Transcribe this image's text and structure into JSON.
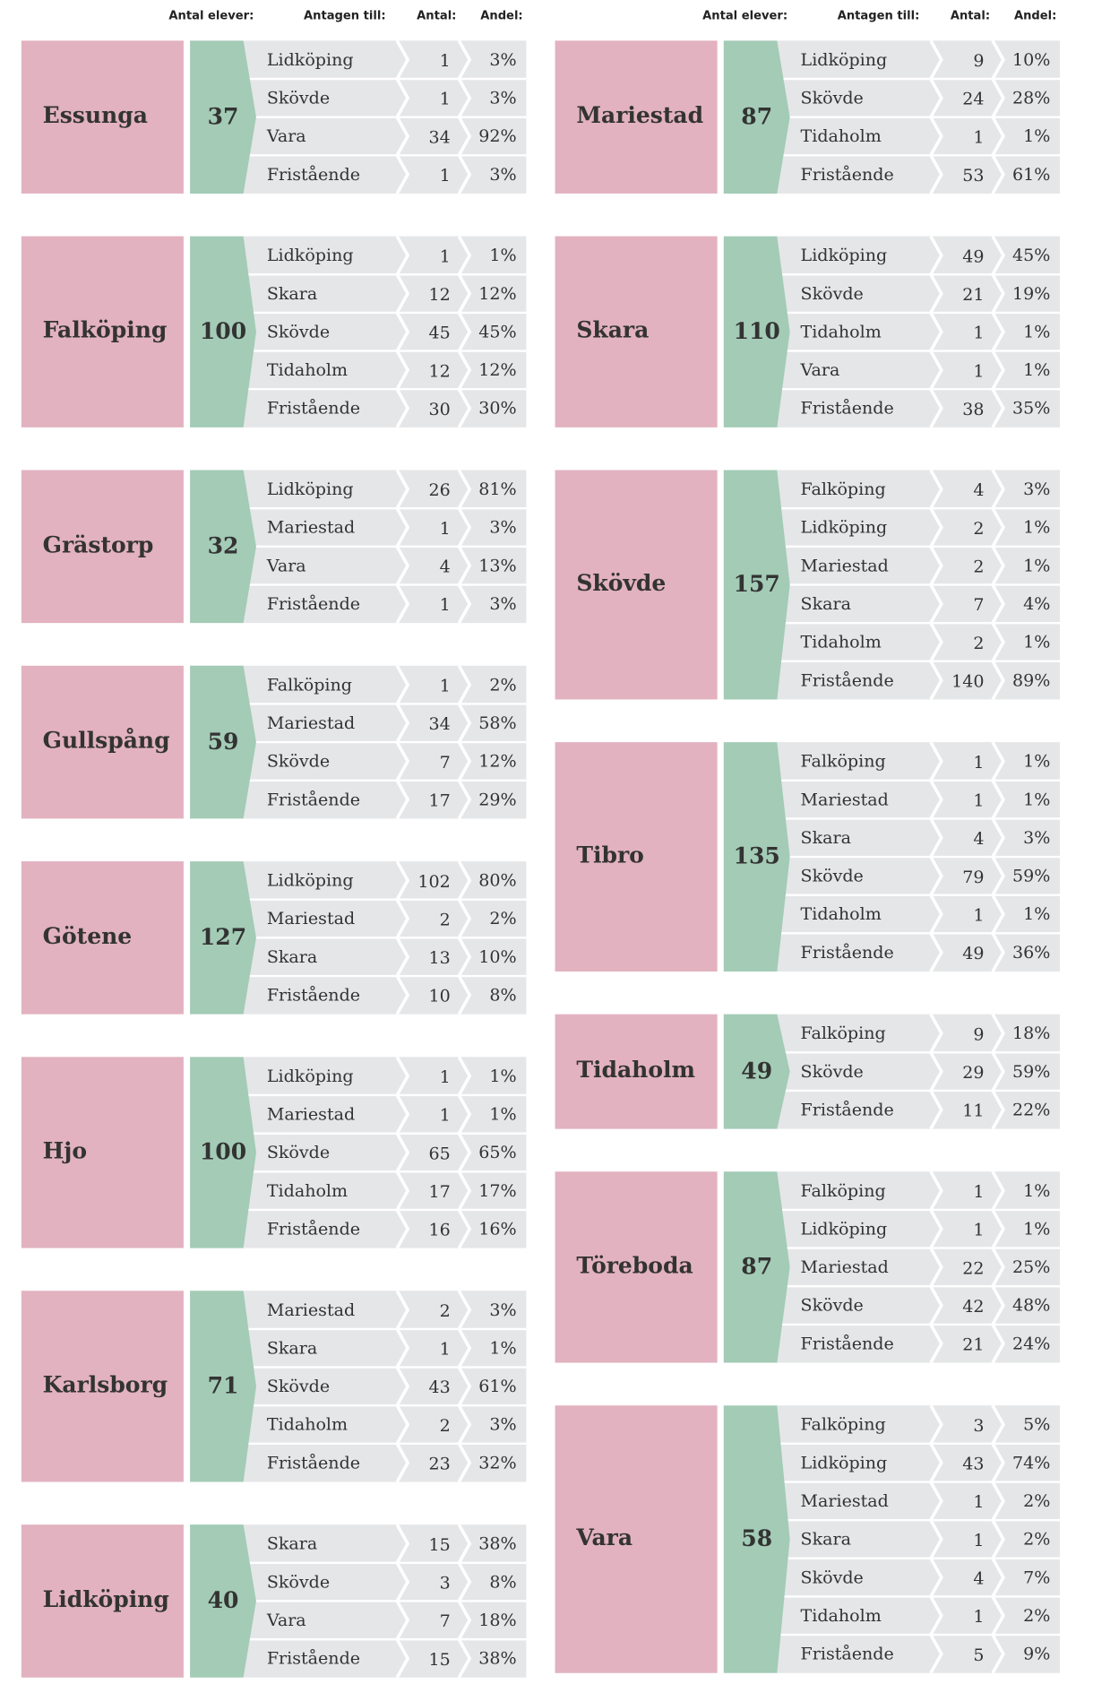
{
  "columns": [
    {
      "headers": [
        "Antal elever:",
        "Antagen till:",
        "Antal:",
        "Andel:"
      ],
      "municipalities": [
        {
          "name": "Essunga",
          "total": 37,
          "rows": [
            [
              "Lidköping",
              1,
              "3%"
            ],
            [
              "Skövde",
              1,
              "3%"
            ],
            [
              "Vara",
              34,
              "92%"
            ],
            [
              "Fristående",
              1,
              "3%"
            ]
          ]
        },
        {
          "name": "Falköping",
          "total": 100,
          "rows": [
            [
              "Lidköping",
              1,
              "1%"
            ],
            [
              "Skara",
              12,
              "12%"
            ],
            [
              "Skövde",
              45,
              "45%"
            ],
            [
              "Tidaholm",
              12,
              "12%"
            ],
            [
              "Fristående",
              30,
              "30%"
            ]
          ]
        },
        {
          "name": "Grästorp",
          "total": 32,
          "rows": [
            [
              "Lidköping",
              26,
              "81%"
            ],
            [
              "Mariestad",
              1,
              "3%"
            ],
            [
              "Vara",
              4,
              "13%"
            ],
            [
              "Fristående",
              1,
              "3%"
            ]
          ]
        },
        {
          "name": "Gullspång",
          "total": 59,
          "rows": [
            [
              "Falköping",
              1,
              "2%"
            ],
            [
              "Mariestad",
              34,
              "58%"
            ],
            [
              "Skövde",
              7,
              "12%"
            ],
            [
              "Fristående",
              17,
              "29%"
            ]
          ]
        },
        {
          "name": "Götene",
          "total": 127,
          "rows": [
            [
              "Lidköping",
              102,
              "80%"
            ],
            [
              "Mariestad",
              2,
              "2%"
            ],
            [
              "Skara",
              13,
              "10%"
            ],
            [
              "Fristående",
              10,
              "8%"
            ]
          ]
        },
        {
          "name": "Hjo",
          "total": 100,
          "rows": [
            [
              "Lidköping",
              1,
              "1%"
            ],
            [
              "Mariestad",
              1,
              "1%"
            ],
            [
              "Skövde",
              65,
              "65%"
            ],
            [
              "Tidaholm",
              17,
              "17%"
            ],
            [
              "Fristående",
              16,
              "16%"
            ]
          ]
        },
        {
          "name": "Karlsborg",
          "total": 71,
          "rows": [
            [
              "Mariestad",
              2,
              "3%"
            ],
            [
              "Skara",
              1,
              "1%"
            ],
            [
              "Skövde",
              43,
              "61%"
            ],
            [
              "Tidaholm",
              2,
              "3%"
            ],
            [
              "Fristående",
              23,
              "32%"
            ]
          ]
        },
        {
          "name": "Lidköping",
          "total": 40,
          "rows": [
            [
              "Skara",
              15,
              "38%"
            ],
            [
              "Skövde",
              3,
              "8%"
            ],
            [
              "Vara",
              7,
              "18%"
            ],
            [
              "Fristående",
              15,
              "38%"
            ]
          ]
        }
      ]
    },
    {
      "headers": [
        "Antal elever:",
        "Antagen till:",
        "Antal:",
        "Andel:"
      ],
      "municipalities": [
        {
          "name": "Mariestad",
          "total": 87,
          "rows": [
            [
              "Lidköping",
              9,
              "10%"
            ],
            [
              "Skövde",
              24,
              "28%"
            ],
            [
              "Tidaholm",
              1,
              "1%"
            ],
            [
              "Fristående",
              53,
              "61%"
            ]
          ]
        },
        {
          "name": "Skara",
          "total": 110,
          "rows": [
            [
              "Lidköping",
              49,
              "45%"
            ],
            [
              "Skövde",
              21,
              "19%"
            ],
            [
              "Tidaholm",
              1,
              "1%"
            ],
            [
              "Vara",
              1,
              "1%"
            ],
            [
              "Fristående",
              38,
              "35%"
            ]
          ]
        },
        {
          "name": "Skövde",
          "total": 157,
          "rows": [
            [
              "Falköping",
              4,
              "3%"
            ],
            [
              "Lidköping",
              2,
              "1%"
            ],
            [
              "Mariestad",
              2,
              "1%"
            ],
            [
              "Skara",
              7,
              "4%"
            ],
            [
              "Tidaholm",
              2,
              "1%"
            ],
            [
              "Fristående",
              140,
              "89%"
            ]
          ]
        },
        {
          "name": "Tibro",
          "total": 135,
          "rows": [
            [
              "Falköping",
              1,
              "1%"
            ],
            [
              "Mariestad",
              1,
              "1%"
            ],
            [
              "Skara",
              4,
              "3%"
            ],
            [
              "Skövde",
              79,
              "59%"
            ],
            [
              "Tidaholm",
              1,
              "1%"
            ],
            [
              "Fristående",
              49,
              "36%"
            ]
          ]
        },
        {
          "name": "Tidaholm",
          "total": 49,
          "rows": [
            [
              "Falköping",
              9,
              "18%"
            ],
            [
              "Skövde",
              29,
              "59%"
            ],
            [
              "Fristående",
              11,
              "22%"
            ]
          ]
        },
        {
          "name": "Töreboda",
          "total": 87,
          "rows": [
            [
              "Falköping",
              1,
              "1%"
            ],
            [
              "Lidköping",
              1,
              "1%"
            ],
            [
              "Mariestad",
              22,
              "25%"
            ],
            [
              "Skövde",
              42,
              "48%"
            ],
            [
              "Fristående",
              21,
              "24%"
            ]
          ]
        },
        {
          "name": "Vara",
          "total": 58,
          "rows": [
            [
              "Falköping",
              3,
              "5%"
            ],
            [
              "Lidköping",
              43,
              "74%"
            ],
            [
              "Mariestad",
              1,
              "2%"
            ],
            [
              "Skara",
              1,
              "2%"
            ],
            [
              "Skövde",
              4,
              "7%"
            ],
            [
              "Tidaholm",
              1,
              "2%"
            ],
            [
              "Fristående",
              5,
              "9%"
            ]
          ]
        }
      ]
    }
  ]
}
